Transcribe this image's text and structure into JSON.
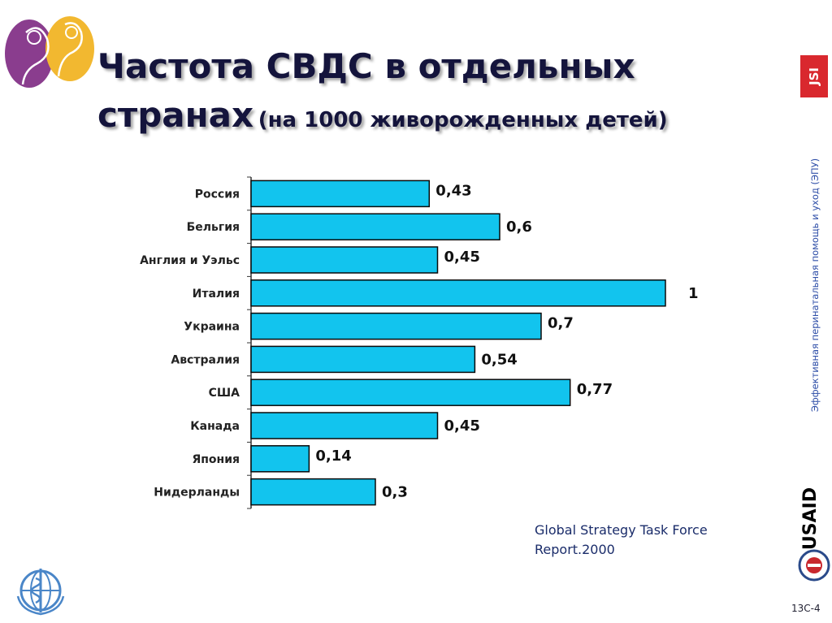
{
  "title": {
    "line1": "Частота СВДС в отдельных",
    "line2": "странах",
    "subtitle": "(на 1000 живорожденных детей)"
  },
  "logos": {
    "top_left": "mother-child-logo",
    "jsi_text": "JSI",
    "usaid_text": "USAID",
    "who": "who-emblem"
  },
  "side_text": "Эффективная перинатальная помощь и уход (ЭПУ)",
  "source": {
    "line1": "Global Strategy Task Force",
    "line2": "Report.2000"
  },
  "page_id": "13С-4",
  "colors": {
    "bar_fill": "#12c4ee",
    "bar_stroke": "#0a0a0a",
    "title": "#14143c"
  },
  "chart_data": {
    "type": "bar",
    "orientation": "horizontal",
    "categories": [
      "Россия",
      "Бельгия",
      "Англия и Уэльс",
      "Италия",
      "Украина",
      "Австралия",
      "США",
      "Канада",
      "Япония",
      "Нидерланды"
    ],
    "values": [
      0.43,
      0.6,
      0.45,
      1,
      0.7,
      0.54,
      0.77,
      0.45,
      0.14,
      0.3
    ],
    "value_labels": [
      "0,43",
      "0,6",
      "0,45",
      "1",
      "0,7",
      "0,54",
      "0,77",
      "0,45",
      "0,14",
      "0,3"
    ],
    "xlim": [
      0,
      1
    ],
    "grid": false,
    "legend": "none"
  }
}
